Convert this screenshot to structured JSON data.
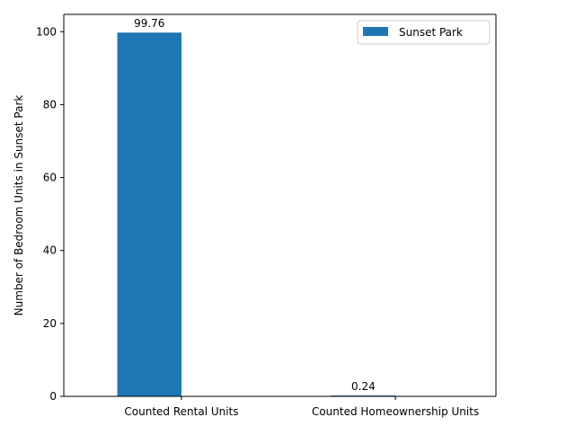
{
  "chart_data": {
    "type": "bar",
    "title": "",
    "xlabel": "",
    "ylabel": "Number of Bedroom Units in Sunset Park",
    "categories": [
      "Counted Rental Units",
      "Counted Homeownership Units"
    ],
    "series": [
      {
        "name": "Sunset Park",
        "values": [
          99.76,
          0.24
        ],
        "data_labels": [
          "99.76",
          "0.24"
        ],
        "color": "#1f77b4"
      }
    ],
    "ylim": [
      0,
      104.75
    ],
    "yticks": [
      0,
      20,
      40,
      60,
      80,
      100
    ],
    "ytick_labels": [
      "0",
      "20",
      "40",
      "60",
      "80",
      "100"
    ],
    "grid": false,
    "legend": {
      "position": "top-right",
      "entries": [
        "Sunset Park"
      ]
    }
  }
}
